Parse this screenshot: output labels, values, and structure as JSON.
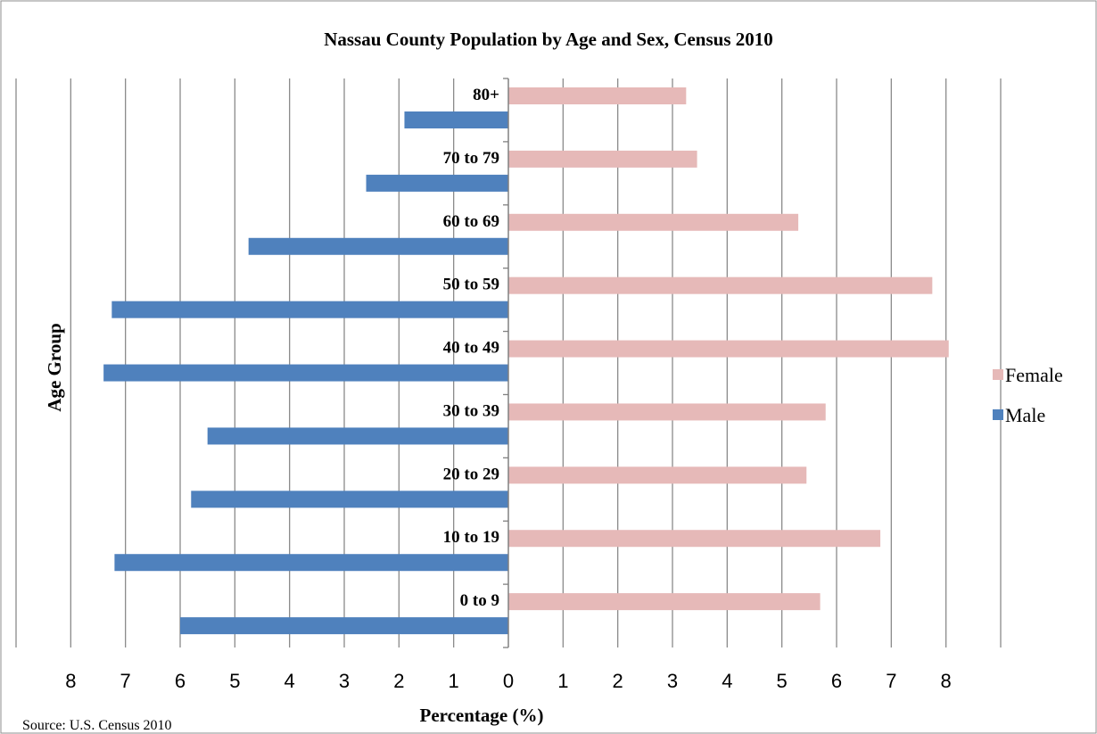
{
  "chart_data": {
    "type": "bar",
    "orientation": "horizontal",
    "title": "Nassau County Population by Age and Sex, Census 2010",
    "xlabel": "Percentage (%)",
    "ylabel": "Age Group",
    "source": "Source: U.S. Census 2010",
    "categories": [
      "0 to 9",
      "10 to 19",
      "20 to 29",
      "30 to 39",
      "40 to 49",
      "50 to 59",
      "60 to 69",
      "70 to 79",
      "80+"
    ],
    "series": [
      {
        "name": "Female",
        "color": "#E6B9B8",
        "values": [
          5.7,
          6.8,
          5.45,
          5.8,
          8.05,
          7.75,
          5.3,
          3.45,
          3.25
        ]
      },
      {
        "name": "Male",
        "color": "#4F81BD",
        "values": [
          6.0,
          7.2,
          5.8,
          5.5,
          7.4,
          7.25,
          4.75,
          2.6,
          1.9
        ]
      }
    ],
    "xlim": [
      -9,
      9
    ],
    "x_ticks": [
      -8,
      -7,
      -6,
      -5,
      -4,
      -3,
      -2,
      -1,
      0,
      1,
      2,
      3,
      4,
      5,
      6,
      7,
      8
    ],
    "x_tick_labels": [
      "8",
      "7",
      "6",
      "5",
      "4",
      "3",
      "2",
      "1",
      "0",
      "1",
      "2",
      "3",
      "4",
      "5",
      "6",
      "7",
      "8"
    ],
    "grid": true,
    "legend": "right"
  }
}
